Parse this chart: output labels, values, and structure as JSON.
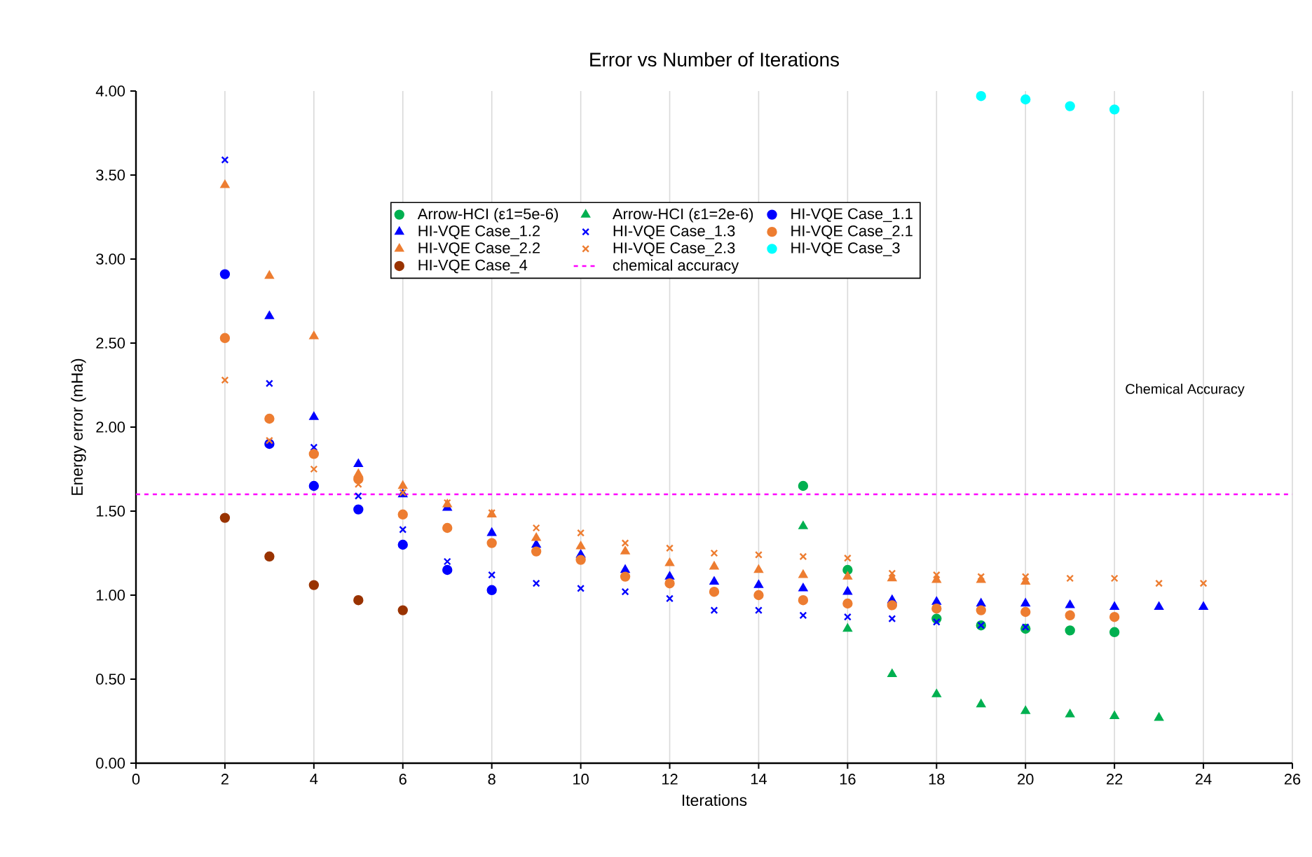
{
  "chart_data": {
    "type": "scatter",
    "title": "Error vs Number of Iterations",
    "xlabel": "Iterations",
    "ylabel": "Energy error (mHa)",
    "xlim": [
      0,
      26
    ],
    "xticks": [
      0,
      2,
      4,
      6,
      8,
      10,
      12,
      14,
      16,
      18,
      20,
      22,
      24,
      26
    ],
    "ylim": [
      0,
      4
    ],
    "yticks": [
      {
        "value": 0,
        "label": "0.00"
      },
      {
        "value": 0.5,
        "label": "0.50"
      },
      {
        "value": 1,
        "label": "1.00"
      },
      {
        "value": 1.5,
        "label": "1.50"
      },
      {
        "value": 2,
        "label": "2.00"
      },
      {
        "value": 2.5,
        "label": "2.50"
      },
      {
        "value": 3,
        "label": "3.00"
      },
      {
        "value": 3.5,
        "label": "3.50"
      },
      {
        "value": 4,
        "label": "4.00"
      }
    ],
    "grid": "x",
    "legend": "top",
    "series": [
      {
        "name": "Arrow-HCI (ε1=5e-6)",
        "color": "#00b050",
        "marker": "circle",
        "x": [
          15,
          16,
          18,
          19,
          20,
          21,
          22
        ],
        "values": [
          1.65,
          1.15,
          0.86,
          0.82,
          0.8,
          0.79,
          0.78
        ]
      },
      {
        "name": "Arrow-HCI (ε1=2e-6)",
        "color": "#00b050",
        "marker": "triangle",
        "x": [
          15,
          16,
          17,
          18,
          19,
          20,
          21,
          22,
          23
        ],
        "values": [
          1.41,
          0.8,
          0.53,
          0.41,
          0.35,
          0.31,
          0.29,
          0.28,
          0.27
        ]
      },
      {
        "name": "HI-VQE Case_1.1",
        "color": "#0000ff",
        "marker": "circle",
        "x": [
          2,
          3,
          4,
          5,
          6,
          7,
          8
        ],
        "values": [
          2.91,
          1.9,
          1.65,
          1.51,
          1.3,
          1.15,
          1.03
        ]
      },
      {
        "name": "HI-VQE Case_1.2",
        "color": "#0000ff",
        "marker": "triangle",
        "x": [
          3,
          4,
          5,
          6,
          7,
          8,
          9,
          10,
          11,
          12,
          13,
          14,
          15,
          16,
          17,
          18,
          19,
          20,
          21,
          22,
          23,
          24
        ],
        "values": [
          2.66,
          2.06,
          1.78,
          1.6,
          1.52,
          1.37,
          1.3,
          1.24,
          1.15,
          1.11,
          1.08,
          1.06,
          1.04,
          1.02,
          0.97,
          0.96,
          0.95,
          0.95,
          0.94,
          0.93,
          0.93,
          0.93
        ]
      },
      {
        "name": "HI-VQE Case_1.3",
        "color": "#0000ff",
        "marker": "cross",
        "x": [
          2,
          3,
          4,
          5,
          6,
          7,
          8,
          9,
          10,
          11,
          12,
          13,
          14,
          15,
          16,
          17,
          18,
          19,
          20
        ],
        "values": [
          3.59,
          2.26,
          1.88,
          1.59,
          1.39,
          1.2,
          1.12,
          1.07,
          1.04,
          1.02,
          0.98,
          0.91,
          0.91,
          0.88,
          0.87,
          0.86,
          0.84,
          0.82,
          0.81
        ]
      },
      {
        "name": "HI-VQE Case_2.1",
        "color": "#ed7d31",
        "marker": "circle",
        "x": [
          2,
          3,
          4,
          5,
          6,
          7,
          8,
          9,
          10,
          11,
          12,
          13,
          14,
          15,
          16,
          17,
          18,
          19,
          20,
          21,
          22
        ],
        "values": [
          2.53,
          2.05,
          1.84,
          1.69,
          1.48,
          1.4,
          1.31,
          1.26,
          1.21,
          1.11,
          1.07,
          1.02,
          1.0,
          0.97,
          0.95,
          0.94,
          0.92,
          0.91,
          0.9,
          0.88,
          0.87
        ]
      },
      {
        "name": "HI-VQE Case_2.2",
        "color": "#ed7d31",
        "marker": "triangle",
        "x": [
          2,
          3,
          4,
          5,
          6,
          7,
          8,
          9,
          10,
          11,
          12,
          13,
          14,
          15,
          16,
          17,
          18,
          19,
          20
        ],
        "values": [
          3.44,
          2.9,
          2.54,
          1.72,
          1.65,
          1.54,
          1.48,
          1.34,
          1.29,
          1.26,
          1.19,
          1.17,
          1.15,
          1.12,
          1.11,
          1.1,
          1.09,
          1.09,
          1.08
        ]
      },
      {
        "name": "HI-VQE Case_2.3",
        "color": "#ed7d31",
        "marker": "cross",
        "x": [
          2,
          3,
          4,
          5,
          6,
          7,
          8,
          9,
          10,
          11,
          12,
          13,
          14,
          15,
          16,
          17,
          18,
          19,
          20,
          21,
          22,
          23,
          24
        ],
        "values": [
          2.28,
          1.92,
          1.75,
          1.66,
          1.61,
          1.55,
          1.49,
          1.4,
          1.37,
          1.31,
          1.28,
          1.25,
          1.24,
          1.23,
          1.22,
          1.13,
          1.12,
          1.11,
          1.11,
          1.1,
          1.1,
          1.07,
          1.07
        ]
      },
      {
        "name": "HI-VQE Case_3",
        "color": "#00ffff",
        "marker": "circle",
        "x": [
          19,
          20,
          21,
          22
        ],
        "values": [
          3.97,
          3.95,
          3.91,
          3.89
        ]
      },
      {
        "name": "HI-VQE Case_4",
        "color": "#993300",
        "marker": "circle",
        "x": [
          2,
          3,
          4,
          5,
          6
        ],
        "values": [
          1.46,
          1.23,
          1.06,
          0.97,
          0.91
        ]
      }
    ],
    "ref_lines": [
      {
        "axis": "y",
        "value": 1.6,
        "label": "chemical accuracy",
        "color": "#ff00ff",
        "line_style": "dashed"
      }
    ],
    "annotations": [
      "Chemical Accuracy"
    ]
  }
}
